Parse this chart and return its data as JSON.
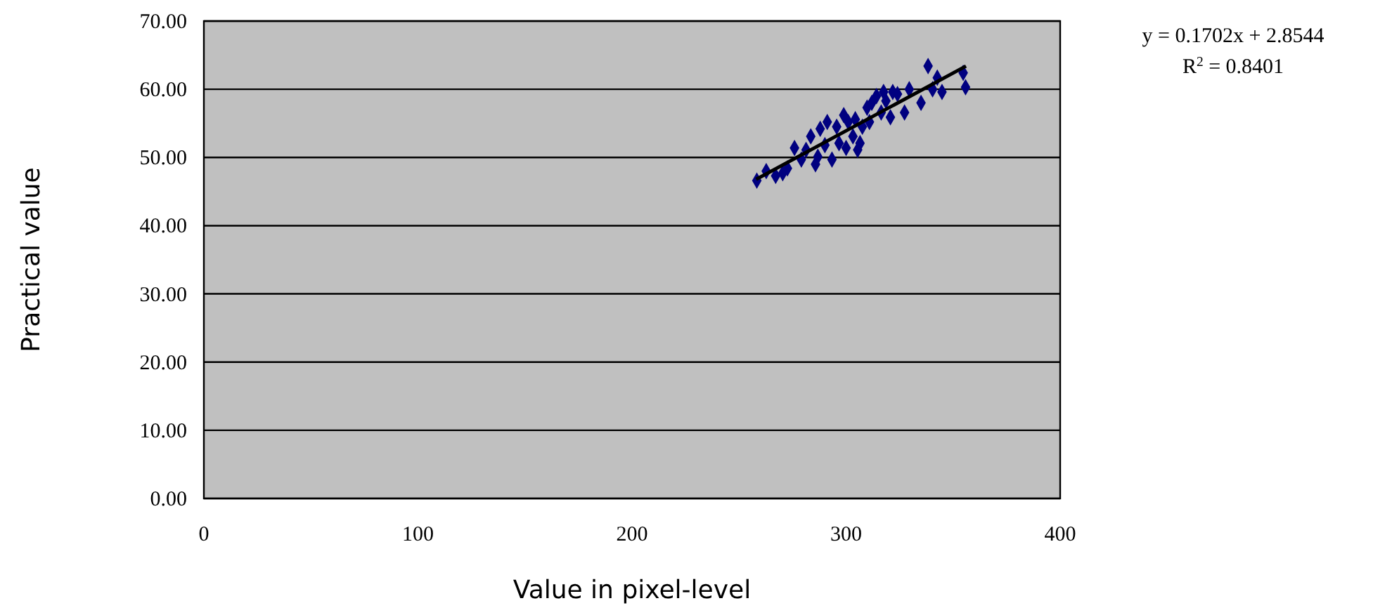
{
  "chart_data": {
    "type": "scatter",
    "xlabel": "Value in pixel-level",
    "ylabel": "Practical value",
    "xlim": [
      0,
      400
    ],
    "xticks": [
      0,
      100,
      200,
      300,
      400
    ],
    "ylim": [
      0,
      70
    ],
    "yticks": [
      {
        "value": 0,
        "label": "0.00"
      },
      {
        "value": 10,
        "label": "10.00"
      },
      {
        "value": 20,
        "label": "20.00"
      },
      {
        "value": 30,
        "label": "30.00"
      },
      {
        "value": 40,
        "label": "40.00"
      },
      {
        "value": 50,
        "label": "50.00"
      },
      {
        "value": 60,
        "label": "60.00"
      },
      {
        "value": 70,
        "label": "70.00"
      }
    ],
    "grid": "y",
    "marker": "diamond",
    "annotations": [
      "y = 0.1702x + 2.8544",
      "R$^{2}$ = 0.8401"
    ],
    "series": [
      {
        "color": "#000080",
        "x": [
          258.3,
          262.7,
          267.1,
          272.6,
          275.9,
          279.1,
          283.5,
          286.8,
          290.1,
          293.4,
          295.6,
          298.9,
          300.0,
          303.2,
          305.4,
          307.6,
          310.9,
          312.0,
          314.2,
          316.4,
          318.6,
          321.8,
          320.7,
          327.3,
          329.5,
          335.0,
          338.3,
          340.4,
          344.8,
          342.6,
          354.7,
          355.8,
          287.9,
          291.2,
          296.7,
          301.0,
          304.3,
          309.8,
          270.4,
          281.3,
          285.7,
          306.5,
          317.5,
          324.0
        ],
        "values": [
          46.6,
          48.0,
          47.3,
          48.4,
          51.4,
          49.7,
          53.1,
          50.1,
          51.8,
          49.7,
          54.5,
          56.2,
          51.4,
          53.1,
          51.1,
          54.5,
          55.2,
          58.0,
          59.0,
          56.6,
          58.3,
          59.6,
          55.9,
          56.6,
          60.0,
          58.0,
          63.4,
          60.0,
          59.6,
          61.7,
          62.4,
          60.3,
          54.2,
          55.2,
          52.1,
          55.2,
          55.6,
          57.3,
          47.7,
          51.1,
          49.0,
          52.1,
          59.6,
          59.3
        ]
      },
      {
        "type": "line",
        "color": "#000000",
        "x": [
          258,
          356
        ],
        "values": [
          46.8,
          63.4
        ],
        "marker": "none"
      }
    ]
  }
}
